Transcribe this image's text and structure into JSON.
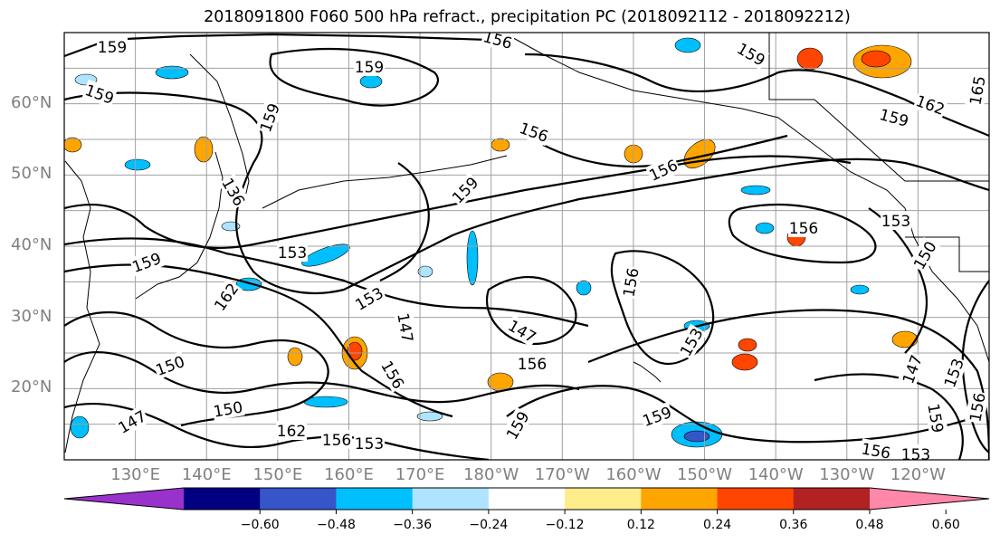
{
  "title": "2018091800 F060 500 hPa refract., precipitation PC (2018092112 - 2018092212)",
  "latitude_labels": [
    "60°N",
    "50°N",
    "40°N",
    "30°N",
    "20°N"
  ],
  "latitude_values": [
    60,
    50,
    40,
    30,
    20
  ],
  "longitude_labels": [
    "130°E",
    "140°E",
    "150°E",
    "160°E",
    "170°E",
    "180°W",
    "170°W",
    "160°W",
    "150°W",
    "140°W",
    "130°W",
    "120°W"
  ],
  "longitude_values": [
    130,
    140,
    150,
    160,
    170,
    180,
    190,
    200,
    210,
    220,
    230,
    240
  ],
  "map_extent": {
    "lon_min": 120,
    "lon_max": 250,
    "lat_min": 10,
    "lat_max": 70
  },
  "contour_labels": [
    "159",
    "159",
    "156",
    "159",
    "159",
    "159",
    "165",
    "162",
    "159",
    "156",
    "136",
    "156",
    "156",
    "159",
    "153",
    "153",
    "159",
    "162",
    "153",
    "150",
    "147",
    "156",
    "147",
    "156",
    "153",
    "150",
    "150",
    "147",
    "162",
    "156",
    "153",
    "159",
    "159",
    "156",
    "153",
    "147",
    "153",
    "156",
    "159",
    "156"
  ],
  "colorbar": {
    "colors": [
      "#9932cc",
      "#000080",
      "#3655c8",
      "#00bfff",
      "#aee4ff",
      "#ffffff",
      "#ffec8b",
      "#ffa500",
      "#ff4500",
      "#b22222",
      "#ff88aa"
    ],
    "ticks": [
      "−0.60",
      "−0.48",
      "−0.36",
      "−0.24",
      "−0.12",
      "0.12",
      "0.24",
      "0.36",
      "0.48",
      "0.60"
    ],
    "tick_values": [
      -0.6,
      -0.48,
      -0.36,
      -0.24,
      -0.12,
      0.12,
      0.24,
      0.36,
      0.48,
      0.6
    ],
    "extend": "both"
  }
}
